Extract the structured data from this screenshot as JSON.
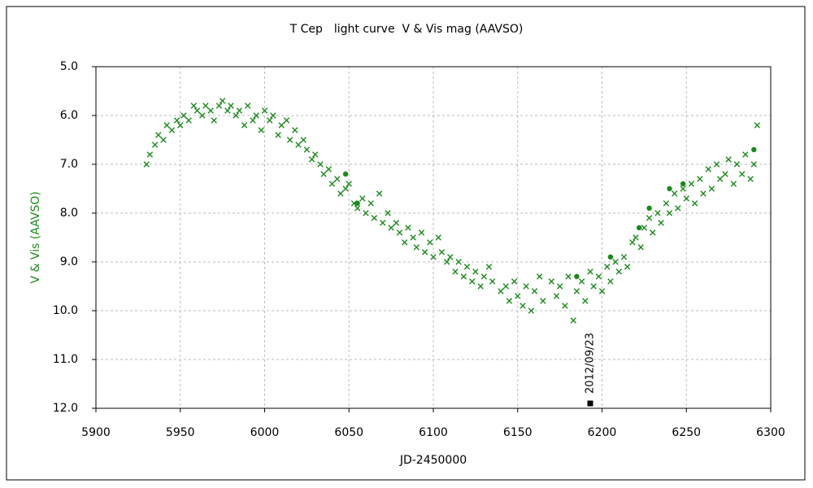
{
  "chart_data": {
    "type": "scatter",
    "title": "T Cep　light curve  V & Vis mag (AAVSO)",
    "xlabel": "JD-2450000",
    "ylabel": "V & Vis (AAVSO)",
    "xlim": [
      5900,
      6300
    ],
    "ylim": [
      12,
      5
    ],
    "xticks": [
      5900,
      5950,
      6000,
      6050,
      6100,
      6150,
      6200,
      6250,
      6300
    ],
    "yticks": [
      {
        "value": 5,
        "label": "5.0"
      },
      {
        "value": 6,
        "label": "6.0"
      },
      {
        "value": 7,
        "label": "7.0"
      },
      {
        "value": 8,
        "label": "8.0"
      },
      {
        "value": 9,
        "label": "9.0"
      },
      {
        "value": 10,
        "label": "10.0"
      },
      {
        "value": 11,
        "label": "11.0"
      },
      {
        "value": 12,
        "label": "12.0"
      }
    ],
    "grid": true,
    "series": [
      {
        "marker": "x",
        "color": "#1a8a1a",
        "x": [
          5930,
          5932,
          5935,
          5937,
          5940,
          5942,
          5945,
          5948,
          5950,
          5952,
          5955,
          5958,
          5960,
          5963,
          5965,
          5968,
          5970,
          5973,
          5975,
          5978,
          5980,
          5983,
          5985,
          5988,
          5990,
          5993,
          5995,
          5998,
          6000,
          6003,
          6005,
          6008,
          6010,
          6013,
          6015,
          6018,
          6020,
          6023,
          6025,
          6028,
          6030,
          6033,
          6035,
          6038,
          6040,
          6043,
          6045,
          6048,
          6050,
          6053,
          6055,
          6058,
          6060,
          6063,
          6065,
          6068,
          6070,
          6073,
          6075,
          6078,
          6080,
          6083,
          6085,
          6088,
          6090,
          6093,
          6095,
          6098,
          6100,
          6103,
          6105,
          6108,
          6110,
          6113,
          6115,
          6118,
          6120,
          6123,
          6125,
          6128,
          6130,
          6133,
          6135,
          6140,
          6143,
          6145,
          6148,
          6150,
          6153,
          6155,
          6158,
          6160,
          6163,
          6165,
          6170,
          6173,
          6175,
          6178,
          6180,
          6183,
          6185,
          6188,
          6190,
          6193,
          6195,
          6198,
          6200,
          6203,
          6205,
          6208,
          6210,
          6213,
          6215,
          6218,
          6220,
          6223,
          6225,
          6228,
          6230,
          6233,
          6235,
          6238,
          6240,
          6243,
          6245,
          6248,
          6250,
          6253,
          6255,
          6258,
          6260,
          6263,
          6265,
          6268,
          6270,
          6273,
          6275,
          6278,
          6280,
          6283,
          6285,
          6288,
          6290,
          6292
        ],
        "y": [
          7.0,
          6.8,
          6.6,
          6.4,
          6.5,
          6.2,
          6.3,
          6.1,
          6.2,
          6.0,
          6.1,
          5.8,
          5.9,
          6.0,
          5.8,
          5.9,
          6.1,
          5.8,
          5.7,
          5.9,
          5.8,
          6.0,
          5.9,
          6.2,
          5.8,
          6.1,
          6.0,
          6.3,
          5.9,
          6.1,
          6.0,
          6.4,
          6.2,
          6.1,
          6.5,
          6.3,
          6.6,
          6.5,
          6.7,
          6.9,
          6.8,
          7.0,
          7.2,
          7.1,
          7.4,
          7.3,
          7.6,
          7.5,
          7.4,
          7.8,
          7.9,
          7.7,
          8.0,
          7.8,
          8.1,
          7.6,
          8.2,
          8.0,
          8.3,
          8.2,
          8.4,
          8.6,
          8.3,
          8.5,
          8.7,
          8.4,
          8.8,
          8.6,
          8.9,
          8.5,
          8.8,
          9.0,
          8.9,
          9.2,
          9.0,
          9.3,
          9.1,
          9.4,
          9.2,
          9.5,
          9.3,
          9.1,
          9.4,
          9.6,
          9.5,
          9.8,
          9.4,
          9.7,
          9.9,
          9.5,
          10.0,
          9.6,
          9.3,
          9.8,
          9.4,
          9.7,
          9.5,
          9.9,
          9.3,
          10.2,
          9.6,
          9.4,
          9.8,
          9.2,
          9.5,
          9.3,
          9.6,
          9.1,
          9.4,
          9.0,
          9.2,
          8.9,
          9.1,
          8.6,
          8.5,
          8.7,
          8.3,
          8.1,
          8.4,
          8.0,
          8.2,
          7.8,
          8.0,
          7.6,
          7.9,
          7.5,
          7.7,
          7.4,
          7.8,
          7.3,
          7.6,
          7.1,
          7.5,
          7.0,
          7.3,
          7.2,
          6.9,
          7.4,
          7.0,
          7.2,
          6.8,
          7.3,
          7.0,
          6.2
        ]
      },
      {
        "marker": "circle",
        "color": "#1a8a1a",
        "x": [
          6048,
          6055,
          6185,
          6205,
          6222,
          6228,
          6240,
          6248,
          6290
        ],
        "y": [
          7.2,
          7.8,
          9.3,
          8.9,
          8.3,
          7.9,
          7.5,
          7.4,
          6.7
        ]
      }
    ],
    "annotation": {
      "text": "2012/09/23",
      "x": 6193,
      "y": 11.9
    }
  }
}
